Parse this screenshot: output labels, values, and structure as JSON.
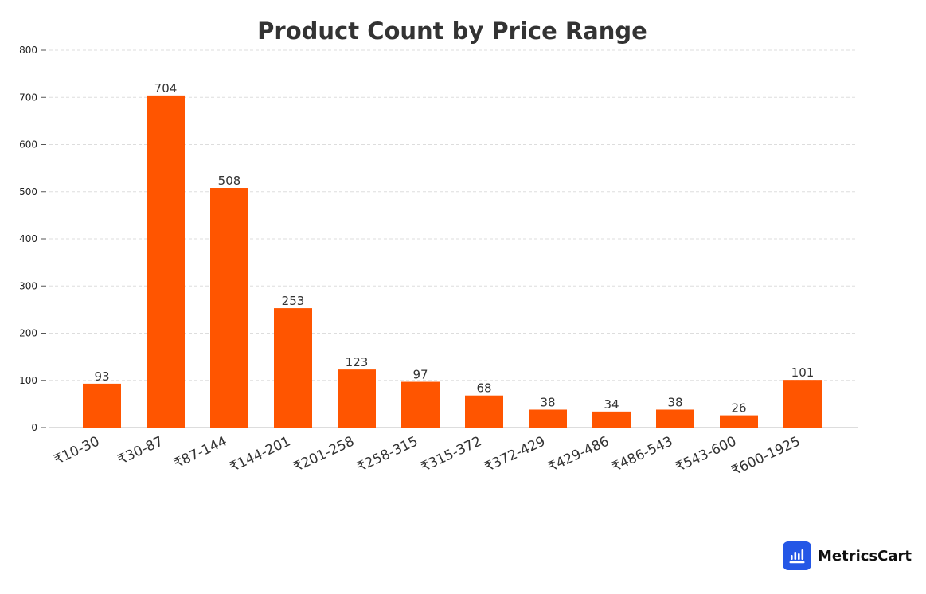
{
  "brand": {
    "name": "MetricsCart",
    "icon": "bar-chart-logo-icon",
    "color": "#2457e6"
  },
  "chart_data": {
    "type": "bar",
    "title": "Product Count by Price Range",
    "xlabel": "",
    "ylabel": "",
    "categories": [
      "₹10-30",
      "₹30-87",
      "₹87-144",
      "₹144-201",
      "₹201-258",
      "₹258-315",
      "₹315-372",
      "₹372-429",
      "₹429-486",
      "₹486-543",
      "₹543-600",
      "₹600-1925"
    ],
    "values": [
      93,
      704,
      508,
      253,
      123,
      97,
      68,
      38,
      34,
      38,
      26,
      101
    ],
    "ylim": [
      0,
      800
    ],
    "yticks": [
      0,
      100,
      200,
      300,
      400,
      500,
      600,
      700,
      800
    ],
    "grid": true,
    "bar_color": "#ff5500",
    "data_labels": true
  }
}
